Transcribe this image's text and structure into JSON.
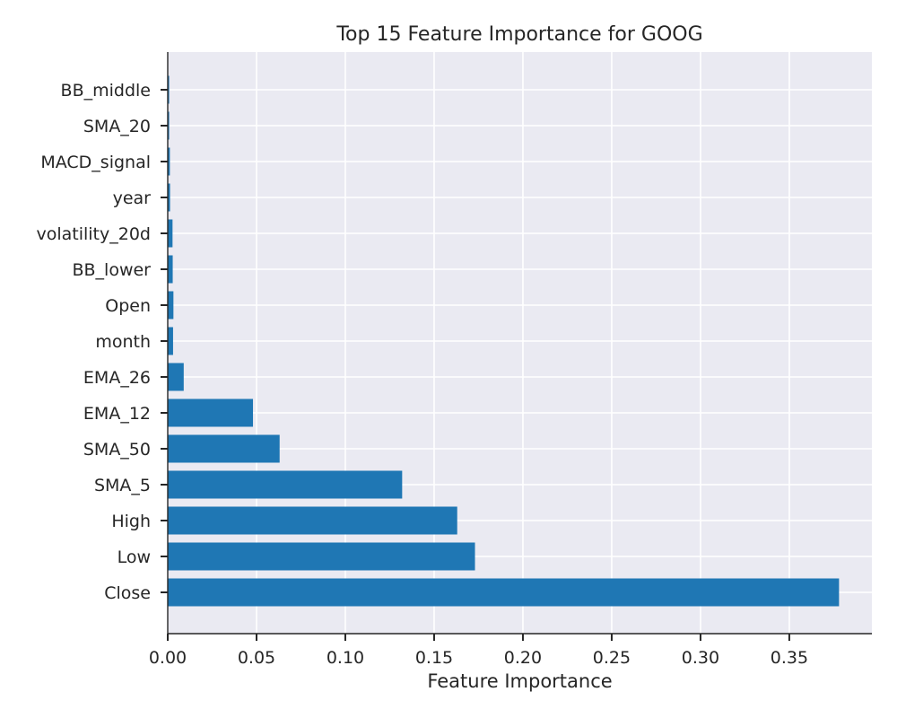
{
  "chart_data": {
    "type": "bar",
    "orientation": "horizontal",
    "title": "Top 15 Feature Importance for GOOG",
    "xlabel": "Feature Importance",
    "ylabel": "",
    "categories": [
      "Close",
      "Low",
      "High",
      "SMA_5",
      "SMA_50",
      "EMA_12",
      "EMA_26",
      "month",
      "Open",
      "BB_lower",
      "volatility_20d",
      "year",
      "MACD_signal",
      "SMA_20",
      "BB_middle"
    ],
    "values": [
      0.378,
      0.173,
      0.163,
      0.132,
      0.063,
      0.048,
      0.009,
      0.003,
      0.0032,
      0.0028,
      0.0027,
      0.0013,
      0.0012,
      0.0008,
      0.0008
    ],
    "xlim": [
      0,
      0.3965
    ],
    "xticks": [
      0,
      0.05,
      0.1,
      0.15,
      0.2,
      0.25,
      0.3,
      0.35
    ],
    "xtick_labels": [
      "0.00",
      "0.05",
      "0.10",
      "0.15",
      "0.20",
      "0.25",
      "0.30",
      "0.35"
    ],
    "grid": true,
    "colors": {
      "bar": "#1f77b4",
      "plot_background": "#eaeaf2",
      "grid": "#ffffff",
      "text": "#262626"
    }
  }
}
